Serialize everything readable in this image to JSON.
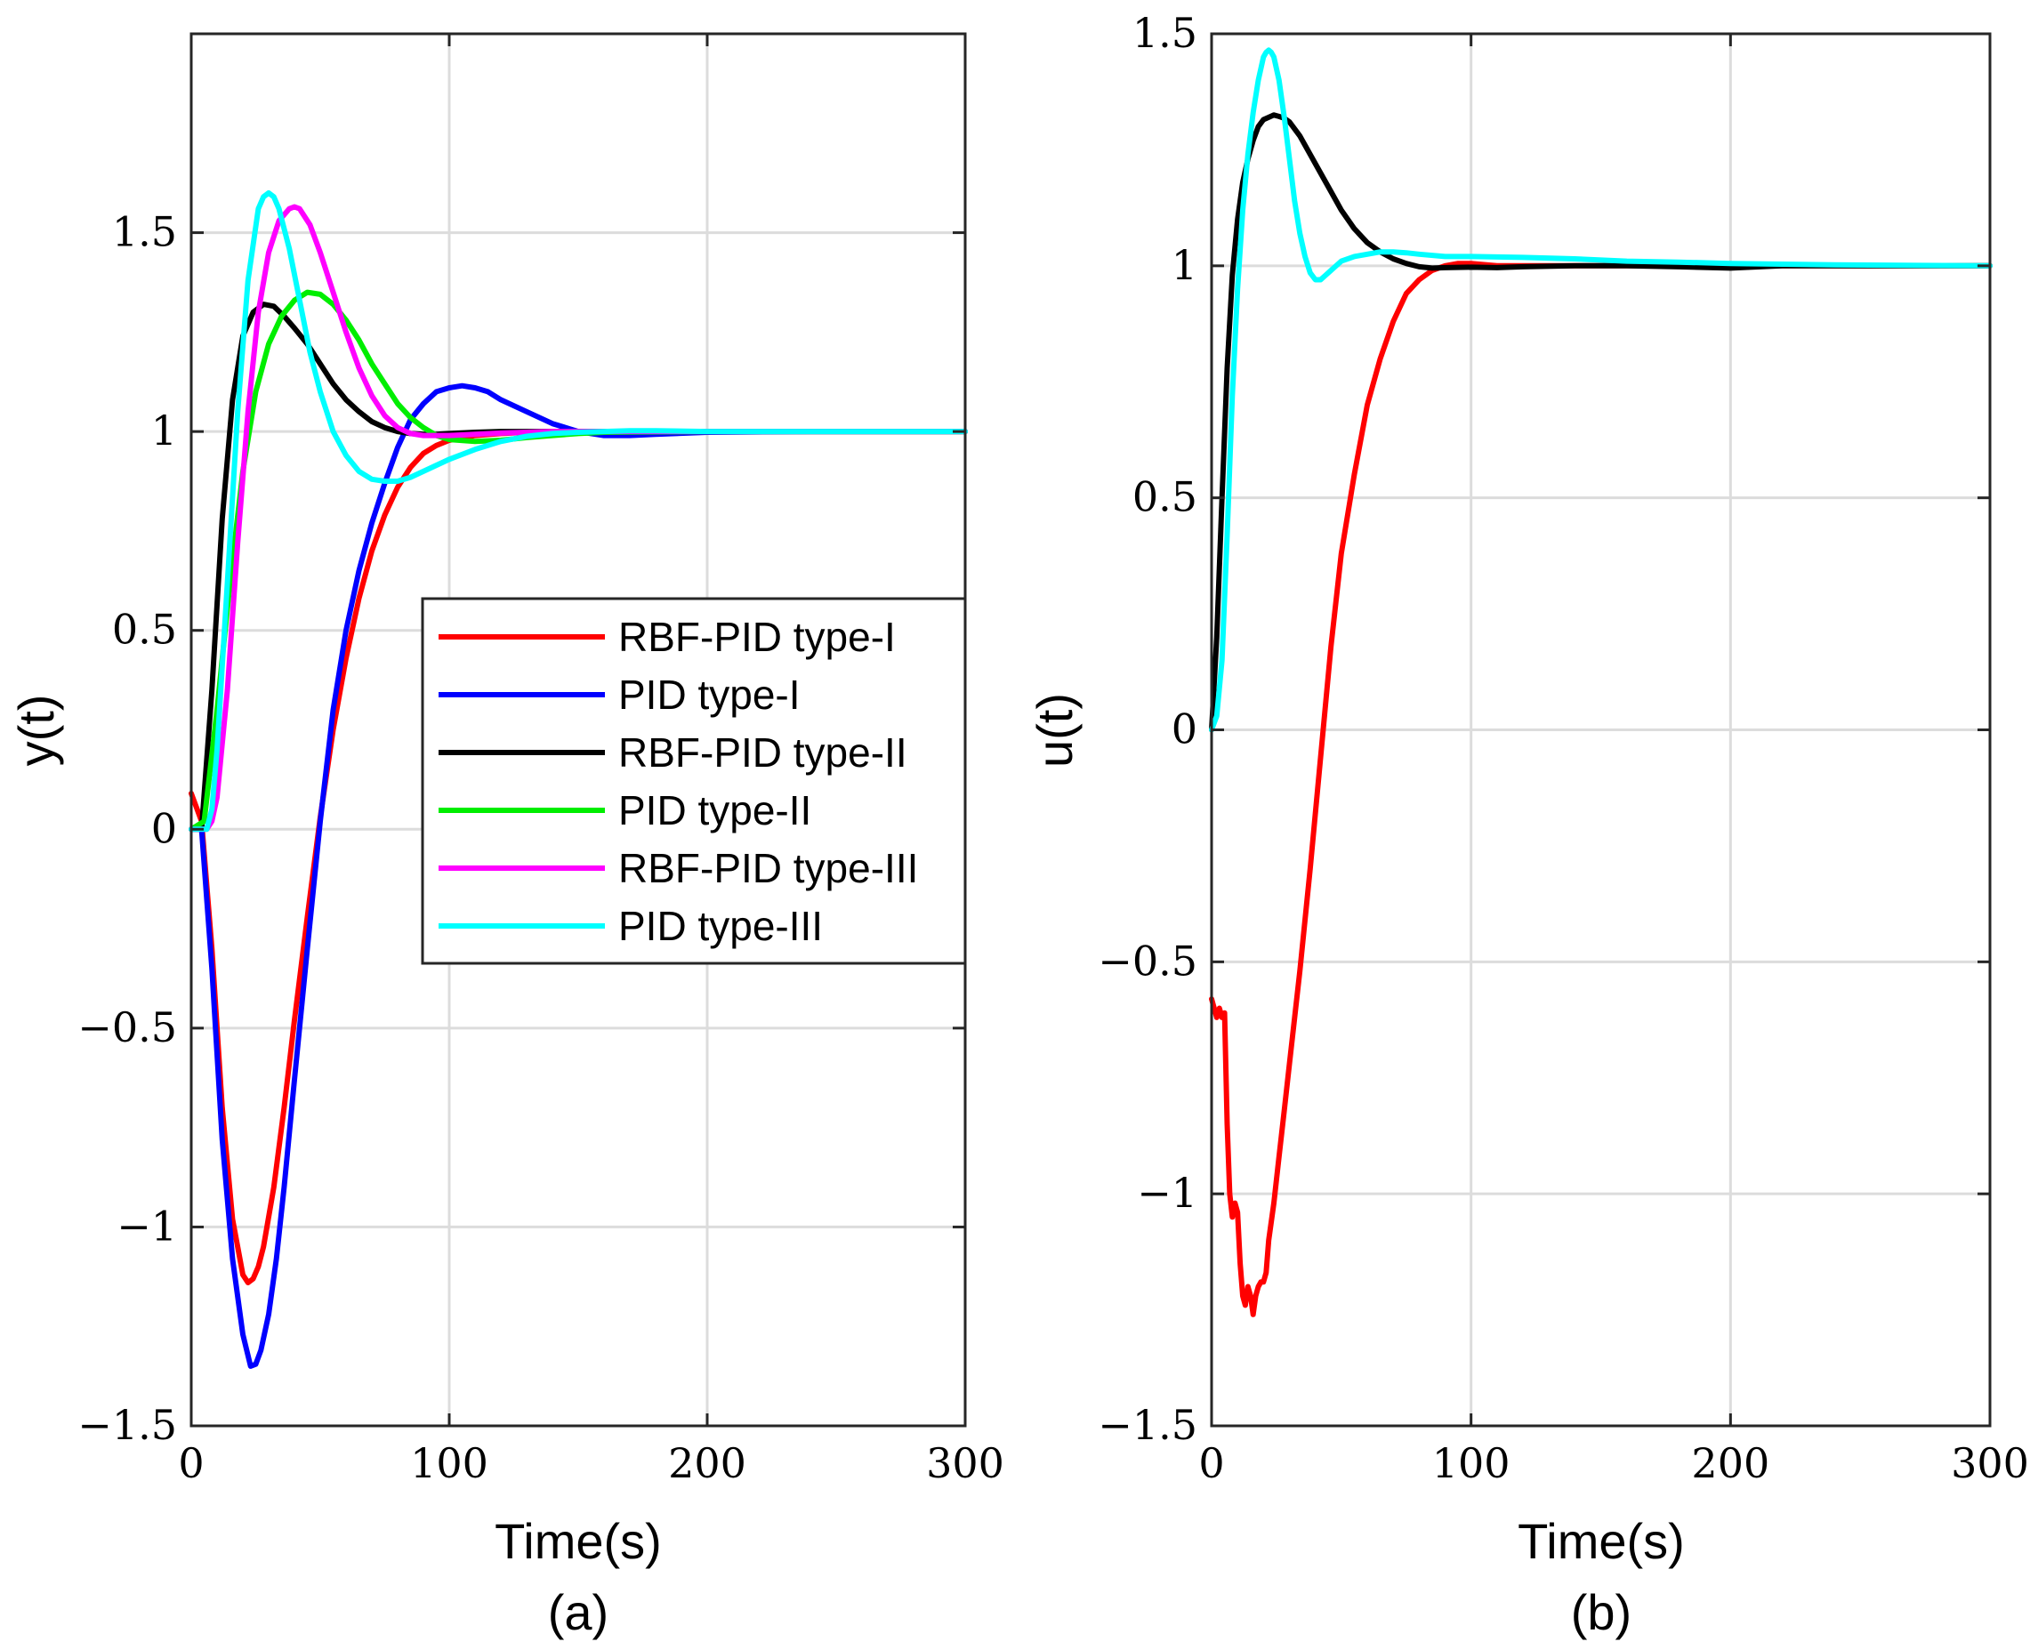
{
  "chart_data": [
    {
      "type": "line",
      "caption": "(a)",
      "xlabel": "Time(s)",
      "ylabel": "y(t)",
      "xlim": [
        0,
        300
      ],
      "ylim": [
        -1.5,
        2.0
      ],
      "xticks": [
        0,
        100,
        200,
        300
      ],
      "xtick_labels": [
        "0",
        "100",
        "200",
        "300"
      ],
      "yticks": [
        -1.5,
        -1,
        -0.5,
        0,
        0.5,
        1,
        1.5
      ],
      "ytick_labels": [
        "−1.5",
        "−1",
        "−0.5",
        "0",
        "0.5",
        "1",
        "1.5"
      ],
      "grid": true,
      "legend_position": "center-right",
      "series": [
        {
          "name": "RBF-PID type-I",
          "color": "#ff0000",
          "x": [
            0,
            4,
            8,
            12,
            16,
            20,
            22,
            24,
            26,
            28,
            32,
            36,
            40,
            45,
            50,
            55,
            60,
            65,
            70,
            75,
            80,
            85,
            90,
            95,
            100,
            110,
            120,
            130,
            140,
            160,
            200,
            300
          ],
          "y": [
            0.09,
            0.02,
            -0.3,
            -0.7,
            -0.98,
            -1.12,
            -1.14,
            -1.13,
            -1.1,
            -1.05,
            -0.9,
            -0.7,
            -0.48,
            -0.22,
            0.03,
            0.25,
            0.43,
            0.58,
            0.7,
            0.79,
            0.86,
            0.91,
            0.945,
            0.965,
            0.978,
            0.99,
            0.995,
            0.998,
            1.0,
            1.0,
            1.0,
            1.0
          ]
        },
        {
          "name": "PID type-I",
          "color": "#0000ff",
          "x": [
            0,
            4,
            8,
            12,
            16,
            20,
            23,
            25,
            27,
            30,
            33,
            36,
            40,
            45,
            50,
            55,
            60,
            65,
            70,
            75,
            80,
            85,
            90,
            95,
            100,
            105,
            110,
            115,
            120,
            130,
            140,
            150,
            160,
            170,
            180,
            200,
            240,
            300
          ],
          "y": [
            0.0,
            0.0,
            -0.35,
            -0.78,
            -1.08,
            -1.27,
            -1.35,
            -1.345,
            -1.31,
            -1.22,
            -1.08,
            -0.9,
            -0.63,
            -0.3,
            0.02,
            0.3,
            0.5,
            0.65,
            0.77,
            0.87,
            0.96,
            1.03,
            1.07,
            1.1,
            1.11,
            1.115,
            1.11,
            1.1,
            1.08,
            1.05,
            1.02,
            1.0,
            0.99,
            0.99,
            0.993,
            0.998,
            1.0,
            1.0
          ]
        },
        {
          "name": "RBF-PID type-II",
          "color": "#000000",
          "x": [
            0,
            4,
            8,
            12,
            16,
            20,
            24,
            28,
            32,
            36,
            40,
            45,
            50,
            55,
            60,
            65,
            70,
            75,
            80,
            85,
            90,
            95,
            100,
            110,
            120,
            140,
            160,
            200,
            300
          ],
          "y": [
            0.0,
            0.0,
            0.35,
            0.78,
            1.08,
            1.24,
            1.3,
            1.32,
            1.315,
            1.29,
            1.26,
            1.22,
            1.17,
            1.12,
            1.08,
            1.05,
            1.025,
            1.01,
            1.0,
            0.995,
            0.993,
            0.993,
            0.995,
            0.998,
            1.0,
            1.0,
            1.0,
            1.0,
            1.0
          ]
        },
        {
          "name": "PID type-II",
          "color": "#00ee00",
          "x": [
            0,
            5,
            10,
            15,
            20,
            25,
            30,
            35,
            40,
            45,
            50,
            55,
            60,
            65,
            70,
            75,
            80,
            85,
            90,
            95,
            100,
            110,
            120,
            130,
            140,
            150,
            160,
            200,
            300
          ],
          "y": [
            0.0,
            0.02,
            0.3,
            0.62,
            0.9,
            1.1,
            1.22,
            1.29,
            1.33,
            1.35,
            1.345,
            1.32,
            1.28,
            1.23,
            1.17,
            1.12,
            1.07,
            1.035,
            1.01,
            0.99,
            0.98,
            0.975,
            0.978,
            0.985,
            0.99,
            0.995,
            0.998,
            1.0,
            1.0
          ]
        },
        {
          "name": "RBF-PID type-III",
          "color": "#ff00ff",
          "x": [
            0,
            4,
            6,
            8,
            10,
            14,
            18,
            22,
            26,
            30,
            34,
            38,
            40,
            42,
            46,
            50,
            55,
            60,
            65,
            70,
            75,
            80,
            85,
            90,
            100,
            110,
            120,
            140,
            200,
            300
          ],
          "y": [
            0.0,
            0.0,
            0.0,
            0.02,
            0.08,
            0.35,
            0.72,
            1.05,
            1.3,
            1.45,
            1.53,
            1.56,
            1.565,
            1.56,
            1.52,
            1.45,
            1.35,
            1.25,
            1.16,
            1.09,
            1.04,
            1.01,
            0.995,
            0.99,
            0.99,
            0.993,
            0.996,
            1.0,
            1.0,
            1.0
          ]
        },
        {
          "name": "PID type-III",
          "color": "#00ffff",
          "x": [
            0,
            4,
            6,
            8,
            10,
            14,
            18,
            22,
            26,
            28,
            30,
            32,
            34,
            38,
            42,
            46,
            50,
            55,
            60,
            65,
            70,
            75,
            80,
            85,
            90,
            95,
            100,
            110,
            120,
            130,
            140,
            150,
            160,
            170,
            180,
            200,
            240,
            300
          ],
          "y": [
            0.0,
            0.0,
            0.0,
            0.05,
            0.2,
            0.62,
            1.05,
            1.38,
            1.56,
            1.59,
            1.6,
            1.59,
            1.56,
            1.46,
            1.33,
            1.2,
            1.1,
            1.0,
            0.94,
            0.9,
            0.88,
            0.875,
            0.875,
            0.885,
            0.9,
            0.915,
            0.93,
            0.955,
            0.975,
            0.988,
            0.995,
            0.998,
            1.0,
            1.002,
            1.002,
            1.0,
            1.0,
            1.0
          ]
        }
      ]
    },
    {
      "type": "line",
      "caption": "(b)",
      "xlabel": "Time(s)",
      "ylabel": "u(t)",
      "xlim": [
        0,
        300
      ],
      "ylim": [
        -1.5,
        1.5
      ],
      "xticks": [
        0,
        100,
        200,
        300
      ],
      "xtick_labels": [
        "0",
        "100",
        "200",
        "300"
      ],
      "yticks": [
        -1.5,
        -1,
        -0.5,
        0,
        0.5,
        1,
        1.5
      ],
      "ytick_labels": [
        "−1.5",
        "−1",
        "−0.5",
        "0",
        "0.5",
        "1",
        "1.5"
      ],
      "grid": true,
      "series": [
        {
          "name": "RBF-PID type-I",
          "color": "#ff0000",
          "x": [
            0,
            1,
            2,
            3,
            4,
            5,
            6,
            7,
            8,
            9,
            10,
            11,
            12,
            13,
            14,
            15,
            16,
            17,
            18,
            19,
            20,
            21,
            22,
            24,
            26,
            28,
            30,
            34,
            38,
            42,
            46,
            50,
            55,
            60,
            65,
            70,
            75,
            80,
            85,
            90,
            95,
            100,
            110,
            120,
            150,
            200,
            300
          ],
          "y": [
            -0.58,
            -0.6,
            -0.62,
            -0.6,
            -0.62,
            -0.61,
            -0.85,
            -1.0,
            -1.05,
            -1.02,
            -1.04,
            -1.15,
            -1.22,
            -1.24,
            -1.2,
            -1.22,
            -1.26,
            -1.22,
            -1.2,
            -1.19,
            -1.19,
            -1.17,
            -1.1,
            -1.02,
            -0.92,
            -0.82,
            -0.72,
            -0.52,
            -0.3,
            -0.06,
            0.18,
            0.38,
            0.55,
            0.7,
            0.8,
            0.88,
            0.94,
            0.97,
            0.99,
            1.0,
            1.005,
            1.005,
            1.0,
            1.0,
            1.0,
            1.0,
            1.0
          ]
        },
        {
          "name": "RBF-PID type-II",
          "color": "#000000",
          "x": [
            0,
            2,
            4,
            6,
            8,
            10,
            12,
            14,
            16,
            18,
            20,
            22,
            24,
            26,
            28,
            30,
            34,
            38,
            42,
            46,
            50,
            55,
            60,
            65,
            70,
            75,
            80,
            85,
            90,
            100,
            110,
            120,
            140,
            160,
            180,
            200,
            220,
            240,
            260,
            280,
            300
          ],
          "y": [
            0.0,
            0.2,
            0.5,
            0.78,
            0.98,
            1.1,
            1.18,
            1.23,
            1.27,
            1.3,
            1.315,
            1.32,
            1.325,
            1.322,
            1.318,
            1.31,
            1.28,
            1.24,
            1.2,
            1.16,
            1.12,
            1.08,
            1.05,
            1.03,
            1.015,
            1.005,
            0.998,
            0.995,
            0.996,
            0.997,
            0.996,
            0.998,
            1.0,
            1.0,
            0.998,
            0.995,
            1.0,
            1.0,
            1.0,
            1.0,
            1.0
          ]
        },
        {
          "name": "PID type-III",
          "color": "#00ffff",
          "x": [
            0,
            2,
            4,
            6,
            8,
            10,
            12,
            14,
            16,
            18,
            20,
            21,
            22,
            23,
            24,
            26,
            28,
            30,
            32,
            34,
            36,
            38,
            40,
            42,
            44,
            46,
            48,
            50,
            55,
            60,
            65,
            70,
            75,
            80,
            90,
            100,
            120,
            140,
            160,
            180,
            200,
            240,
            300
          ],
          "y": [
            0.0,
            0.03,
            0.15,
            0.42,
            0.72,
            0.95,
            1.12,
            1.24,
            1.33,
            1.4,
            1.45,
            1.46,
            1.465,
            1.46,
            1.45,
            1.4,
            1.32,
            1.23,
            1.14,
            1.07,
            1.02,
            0.985,
            0.97,
            0.97,
            0.98,
            0.99,
            1.0,
            1.01,
            1.02,
            1.025,
            1.03,
            1.03,
            1.028,
            1.025,
            1.02,
            1.02,
            1.018,
            1.015,
            1.01,
            1.008,
            1.005,
            1.002,
            1.0
          ]
        }
      ]
    }
  ]
}
